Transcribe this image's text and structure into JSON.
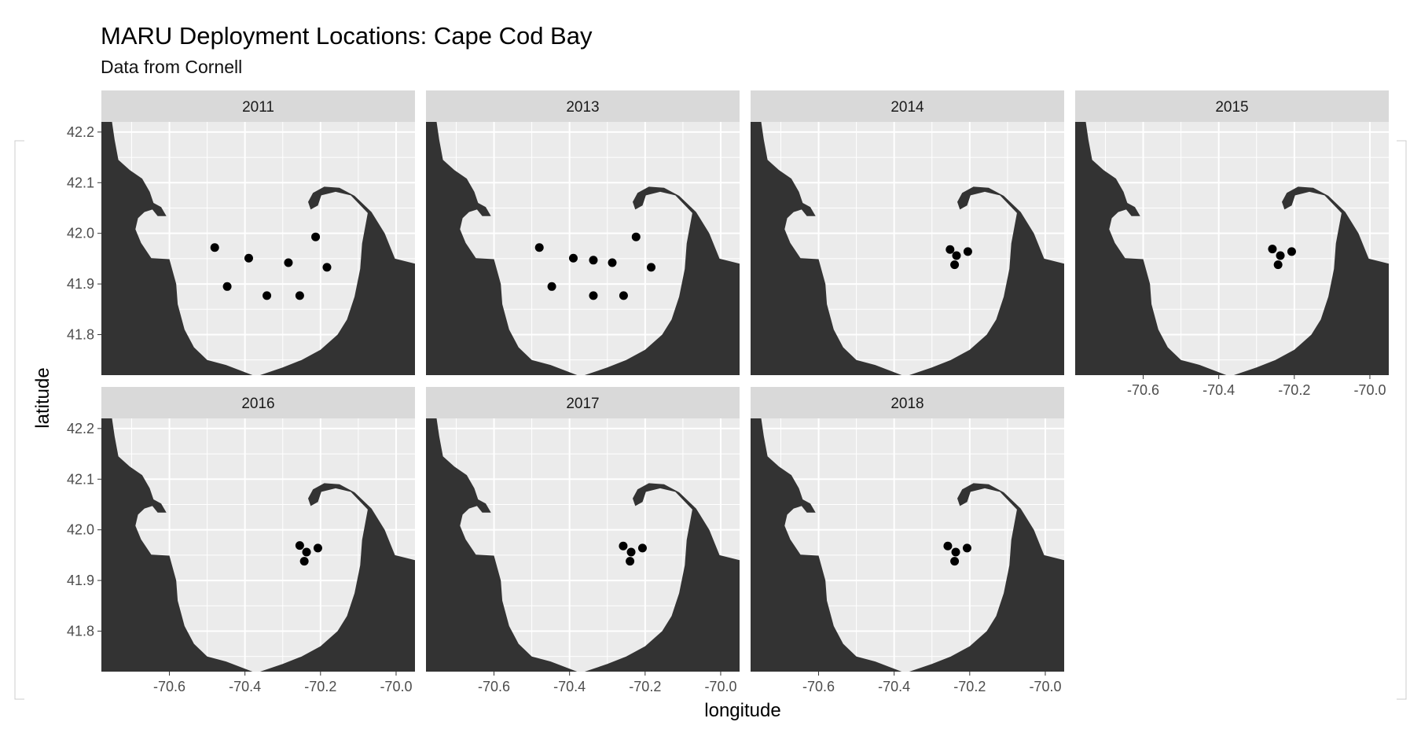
{
  "chart_data": {
    "type": "scatter",
    "title": "MARU Deployment Locations: Cape Cod Bay",
    "subtitle": "Data from Cornell",
    "xlabel": "longitude",
    "ylabel": "latitude",
    "xlim": [
      -70.78,
      -69.95
    ],
    "ylim": [
      41.72,
      42.22
    ],
    "x_ticks": [
      -70.6,
      -70.4,
      -70.2,
      -70.0
    ],
    "x_tick_labels": [
      "-70.6",
      "-70.4",
      "-70.2",
      "-70.0"
    ],
    "y_ticks": [
      42.2,
      42.1,
      42.0,
      41.9,
      41.8
    ],
    "y_tick_labels": [
      "42.2",
      "42.1",
      "42.0",
      "41.9",
      "41.8"
    ],
    "grid": true,
    "colors": {
      "panel_bg": "#ebebeb",
      "strip_bg": "#d9d9d9",
      "grid": "#ffffff",
      "land": "#333333",
      "point": "#000000"
    },
    "facets": [
      {
        "label": "2011",
        "points": [
          {
            "lon": -70.48,
            "lat": 41.972
          },
          {
            "lon": -70.39,
            "lat": 41.951
          },
          {
            "lon": -70.213,
            "lat": 41.993
          },
          {
            "lon": -70.285,
            "lat": 41.942
          },
          {
            "lon": -70.183,
            "lat": 41.933
          },
          {
            "lon": -70.447,
            "lat": 41.895
          },
          {
            "lon": -70.342,
            "lat": 41.877
          },
          {
            "lon": -70.255,
            "lat": 41.877
          }
        ]
      },
      {
        "label": "2013",
        "points": [
          {
            "lon": -70.48,
            "lat": 41.972
          },
          {
            "lon": -70.39,
            "lat": 41.951
          },
          {
            "lon": -70.337,
            "lat": 41.947
          },
          {
            "lon": -70.287,
            "lat": 41.942
          },
          {
            "lon": -70.224,
            "lat": 41.993
          },
          {
            "lon": -70.184,
            "lat": 41.933
          },
          {
            "lon": -70.447,
            "lat": 41.895
          },
          {
            "lon": -70.337,
            "lat": 41.877
          },
          {
            "lon": -70.257,
            "lat": 41.877
          }
        ]
      },
      {
        "label": "2014",
        "points": [
          {
            "lon": -70.252,
            "lat": 41.968
          },
          {
            "lon": -70.235,
            "lat": 41.956
          },
          {
            "lon": -70.205,
            "lat": 41.964
          },
          {
            "lon": -70.24,
            "lat": 41.938
          }
        ]
      },
      {
        "label": "2015",
        "points": [
          {
            "lon": -70.258,
            "lat": 41.969
          },
          {
            "lon": -70.237,
            "lat": 41.956
          },
          {
            "lon": -70.207,
            "lat": 41.964
          },
          {
            "lon": -70.243,
            "lat": 41.938
          }
        ]
      },
      {
        "label": "2016",
        "points": [
          {
            "lon": -70.255,
            "lat": 41.969
          },
          {
            "lon": -70.237,
            "lat": 41.956
          },
          {
            "lon": -70.207,
            "lat": 41.964
          },
          {
            "lon": -70.243,
            "lat": 41.938
          }
        ]
      },
      {
        "label": "2017",
        "points": [
          {
            "lon": -70.258,
            "lat": 41.968
          },
          {
            "lon": -70.237,
            "lat": 41.956
          },
          {
            "lon": -70.207,
            "lat": 41.964
          },
          {
            "lon": -70.24,
            "lat": 41.938
          }
        ]
      },
      {
        "label": "2018",
        "points": [
          {
            "lon": -70.258,
            "lat": 41.968
          },
          {
            "lon": -70.237,
            "lat": 41.956
          },
          {
            "lon": -70.207,
            "lat": 41.964
          },
          {
            "lon": -70.24,
            "lat": 41.938
          }
        ]
      }
    ],
    "land_polygons": [
      [
        [
          -70.78,
          42.22
        ],
        [
          -70.752,
          42.22
        ],
        [
          -70.745,
          42.185
        ],
        [
          -70.735,
          42.145
        ],
        [
          -70.705,
          42.125
        ],
        [
          -70.672,
          42.108
        ],
        [
          -70.652,
          42.082
        ],
        [
          -70.642,
          42.06
        ],
        [
          -70.622,
          42.052
        ],
        [
          -70.608,
          42.034
        ],
        [
          -70.631,
          42.034
        ],
        [
          -70.645,
          42.047
        ],
        [
          -70.666,
          42.042
        ],
        [
          -70.683,
          42.03
        ],
        [
          -70.69,
          42.008
        ],
        [
          -70.675,
          41.981
        ],
        [
          -70.648,
          41.951
        ],
        [
          -70.6,
          41.949
        ],
        [
          -70.582,
          41.9
        ],
        [
          -70.578,
          41.86
        ],
        [
          -70.56,
          41.81
        ],
        [
          -70.535,
          41.775
        ],
        [
          -70.5,
          41.75
        ],
        [
          -70.45,
          41.74
        ],
        [
          -70.38,
          41.72
        ],
        [
          -70.78,
          41.72
        ]
      ],
      [
        [
          -70.36,
          41.72
        ],
        [
          -70.3,
          41.735
        ],
        [
          -70.25,
          41.75
        ],
        [
          -70.2,
          41.77
        ],
        [
          -70.155,
          41.8
        ],
        [
          -70.13,
          41.83
        ],
        [
          -70.11,
          41.875
        ],
        [
          -70.095,
          41.93
        ],
        [
          -70.09,
          41.98
        ],
        [
          -70.075,
          42.04
        ],
        [
          -70.12,
          42.075
        ],
        [
          -70.16,
          42.082
        ],
        [
          -70.198,
          42.075
        ],
        [
          -70.207,
          42.055
        ],
        [
          -70.226,
          42.047
        ],
        [
          -70.233,
          42.062
        ],
        [
          -70.22,
          42.08
        ],
        [
          -70.19,
          42.092
        ],
        [
          -70.15,
          42.09
        ],
        [
          -70.11,
          42.074
        ],
        [
          -70.065,
          42.042
        ],
        [
          -70.03,
          42.0
        ],
        [
          -70.003,
          41.95
        ],
        [
          -69.95,
          41.94
        ],
        [
          -69.95,
          41.72
        ]
      ]
    ]
  }
}
